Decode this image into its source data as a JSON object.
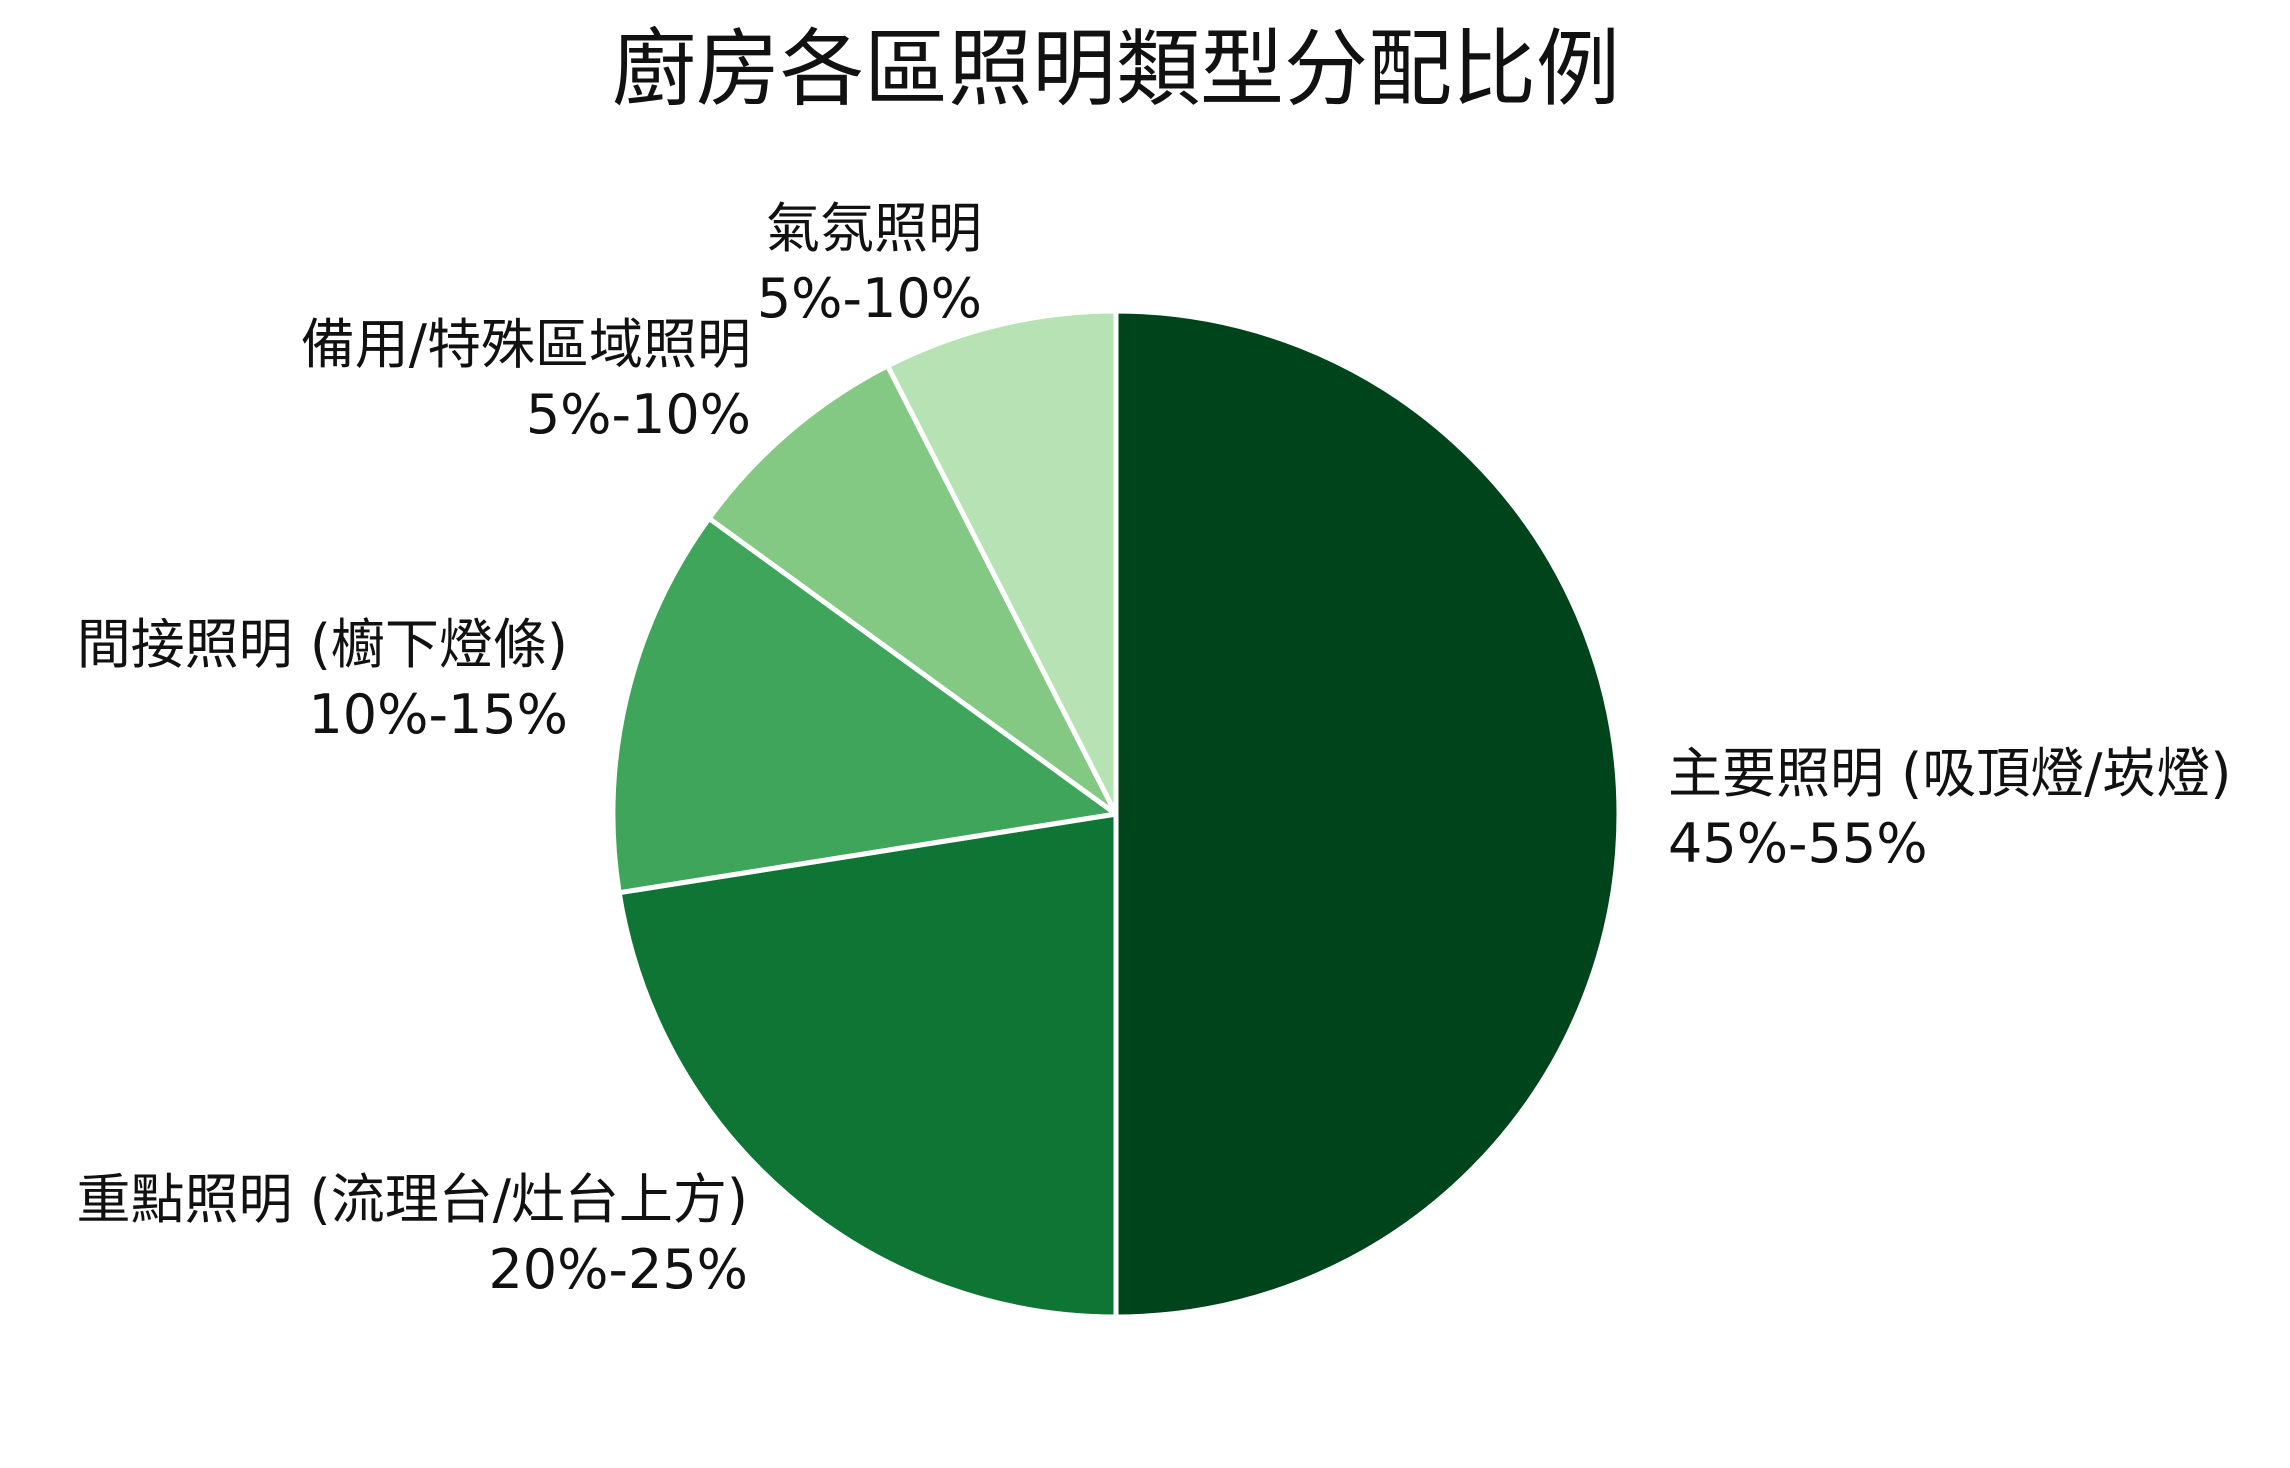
{
  "chart_data": {
    "type": "pie",
    "title": "廚房各區照明類型分配比例",
    "slices": [
      {
        "name": "主要照明 (吸頂燈/崁燈)",
        "range_label": "45%-55%",
        "value": 50,
        "color": "#00441b"
      },
      {
        "name": "重點照明 (流理台/灶台上方)",
        "range_label": "20%-25%",
        "value": 22.5,
        "color": "#0e7535"
      },
      {
        "name": "間接照明 (櫥下燈條)",
        "range_label": "10%-15%",
        "value": 12.5,
        "color": "#3ea55a"
      },
      {
        "name": "備用/特殊區域照明",
        "range_label": "5%-10%",
        "value": 7.5,
        "color": "#84c983"
      },
      {
        "name": "氣氛照明",
        "range_label": "5%-10%",
        "value": 7.5,
        "color": "#b7e2b3"
      }
    ],
    "start_angle": "12 o'clock",
    "direction": "clockwise",
    "legend": "none"
  }
}
